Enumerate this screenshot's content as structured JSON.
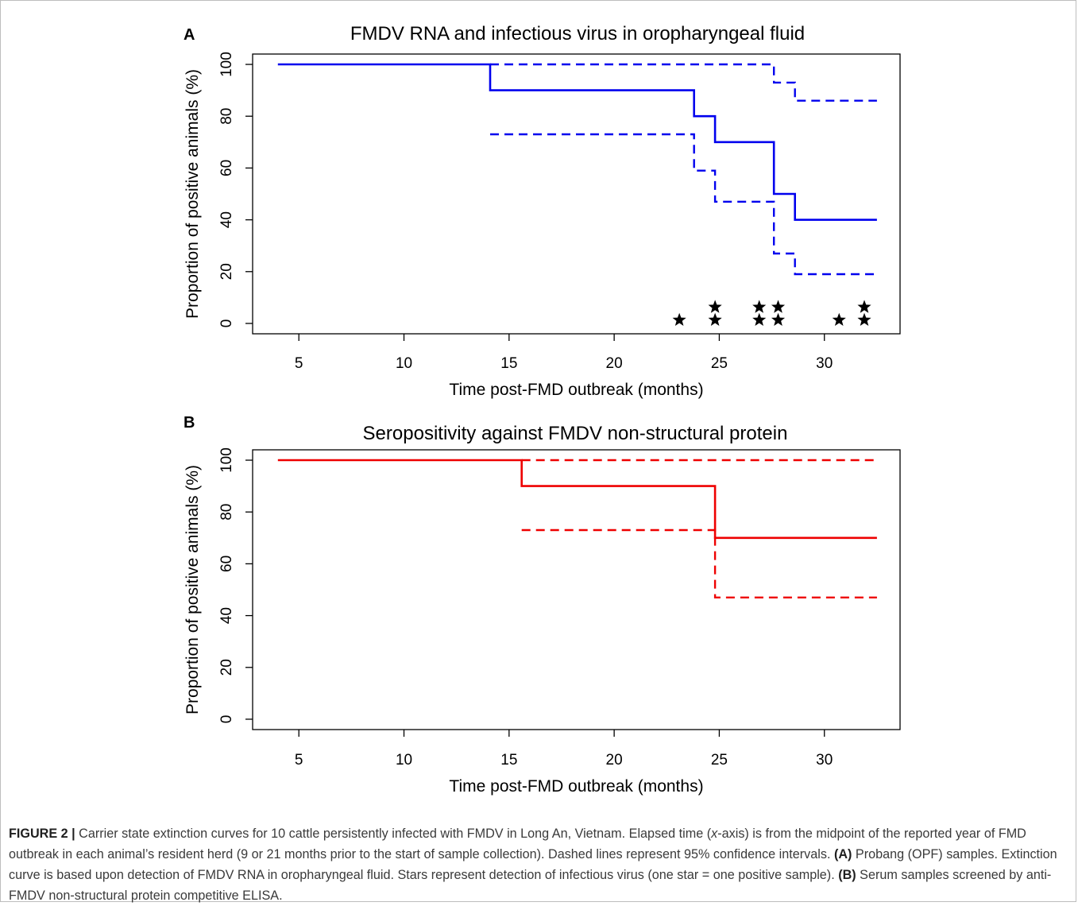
{
  "chart_data": [
    {
      "type": "line",
      "panel_label": "A",
      "title": "FMDV RNA and infectious virus in oropharyngeal fluid",
      "xlabel": "Time post-FMD outbreak (months)",
      "ylabel": "Proportion of positive animals (%)",
      "xlim": [
        2.8,
        33.6
      ],
      "ylim": [
        -4,
        104
      ],
      "xticks": [
        5,
        10,
        15,
        20,
        25,
        30
      ],
      "yticks": [
        0,
        20,
        40,
        60,
        80,
        100
      ],
      "grid": false,
      "color": "#0000ee",
      "series": [
        {
          "style": "solid",
          "x": [
            4,
            14.1,
            23.8,
            24.8,
            27.6,
            28.6,
            32.5
          ],
          "y": [
            100,
            90,
            80,
            70,
            50,
            40,
            40
          ]
        },
        {
          "style": "dashed",
          "x": [
            14.1,
            27.6,
            28.6,
            32.5
          ],
          "y": [
            100,
            93,
            86,
            86
          ]
        },
        {
          "style": "dashed",
          "x": [
            14.1,
            23.8,
            24.8,
            27.6,
            28.6,
            32.5
          ],
          "y": [
            73,
            59,
            47,
            27,
            19,
            19
          ]
        }
      ],
      "stars": [
        {
          "x": 23.1,
          "y": 1
        },
        {
          "x": 24.8,
          "y": 1
        },
        {
          "x": 24.8,
          "y": 6
        },
        {
          "x": 26.9,
          "y": 1
        },
        {
          "x": 26.9,
          "y": 6
        },
        {
          "x": 27.8,
          "y": 1
        },
        {
          "x": 27.8,
          "y": 6
        },
        {
          "x": 30.7,
          "y": 1
        },
        {
          "x": 31.9,
          "y": 1
        },
        {
          "x": 31.9,
          "y": 6
        }
      ]
    },
    {
      "type": "line",
      "panel_label": "B",
      "title": "Seropositivity against FMDV non-structural protein",
      "xlabel": "Time post-FMD outbreak (months)",
      "ylabel": "Proportion of positive animals (%)",
      "xlim": [
        2.8,
        33.6
      ],
      "ylim": [
        -4,
        104
      ],
      "xticks": [
        5,
        10,
        15,
        20,
        25,
        30
      ],
      "yticks": [
        0,
        20,
        40,
        60,
        80,
        100
      ],
      "grid": false,
      "color": "#ee0000",
      "series": [
        {
          "style": "solid",
          "x": [
            4,
            15.6,
            24.8,
            32.5
          ],
          "y": [
            100,
            90,
            70,
            70
          ]
        },
        {
          "style": "dashed",
          "x": [
            15.6,
            32.5
          ],
          "y": [
            100,
            100
          ]
        },
        {
          "style": "dashed",
          "x": [
            15.6,
            24.8,
            32.5
          ],
          "y": [
            73,
            47,
            47
          ]
        }
      ]
    }
  ],
  "caption": {
    "figure_label": "FIGURE 2 |",
    "text_1": " Carrier state extinction curves for 10 cattle persistently infected with FMDV in Long An, Vietnam. Elapsed time (",
    "x_italic": "x",
    "text_2": "-axis) is from the midpoint of the reported year of FMD outbreak in each animal’s resident herd (9 or 21 months prior to the start of sample collection). Dashed lines represent 95% confidence intervals. ",
    "label_a": "(A)",
    "text_3": " Probang (OPF) samples. Extinction curve is based upon detection of FMDV RNA in oropharyngeal fluid. Stars represent detection of infectious virus (one star = one positive sample). ",
    "label_b": "(B)",
    "text_4": " Serum samples screened by anti-FMDV non-structural protein competitive ELISA."
  }
}
